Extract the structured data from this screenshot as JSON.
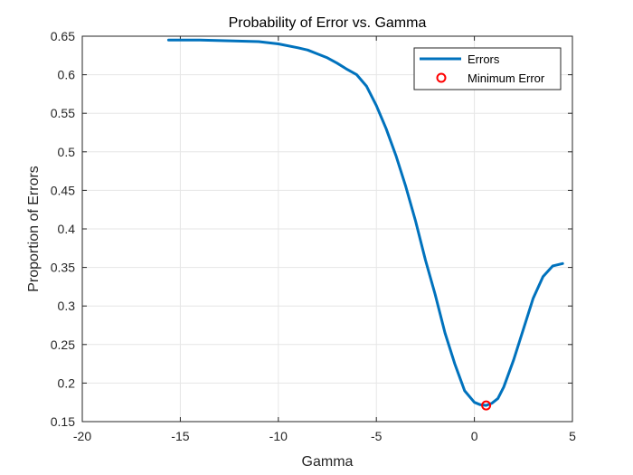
{
  "chart_data": {
    "type": "line",
    "title": "Probability of Error vs. Gamma",
    "xlabel": "Gamma",
    "ylabel": "Proportion of Errors",
    "xlim": [
      -20,
      5
    ],
    "ylim": [
      0.15,
      0.65
    ],
    "xticks": [
      -20,
      -15,
      -10,
      -5,
      0,
      5
    ],
    "yticks": [
      0.15,
      0.2,
      0.25,
      0.3,
      0.35,
      0.4,
      0.45,
      0.5,
      0.55,
      0.6,
      0.65
    ],
    "grid": true,
    "legend_position": "top-right",
    "series": [
      {
        "name": "Errors",
        "color": "#0072BD",
        "x": [
          -15.6,
          -14,
          -12.5,
          -11,
          -10,
          -9,
          -8.5,
          -8,
          -7.5,
          -7,
          -6.5,
          -6,
          -5.5,
          -5,
          -4.5,
          -4,
          -3.5,
          -3,
          -2.5,
          -2,
          -1.5,
          -1,
          -0.5,
          0,
          0.3,
          0.6,
          0.9,
          1.2,
          1.5,
          2,
          2.5,
          3,
          3.5,
          4,
          4.5
        ],
        "y": [
          0.645,
          0.645,
          0.644,
          0.643,
          0.64,
          0.635,
          0.632,
          0.627,
          0.622,
          0.615,
          0.607,
          0.6,
          0.585,
          0.56,
          0.53,
          0.495,
          0.455,
          0.41,
          0.36,
          0.315,
          0.265,
          0.225,
          0.19,
          0.175,
          0.172,
          0.171,
          0.174,
          0.18,
          0.195,
          0.23,
          0.27,
          0.31,
          0.338,
          0.352,
          0.355
        ]
      },
      {
        "name": "Minimum Error",
        "color": "#FF0000",
        "marker": "circle",
        "x": [
          0.6
        ],
        "y": [
          0.171
        ]
      }
    ]
  }
}
